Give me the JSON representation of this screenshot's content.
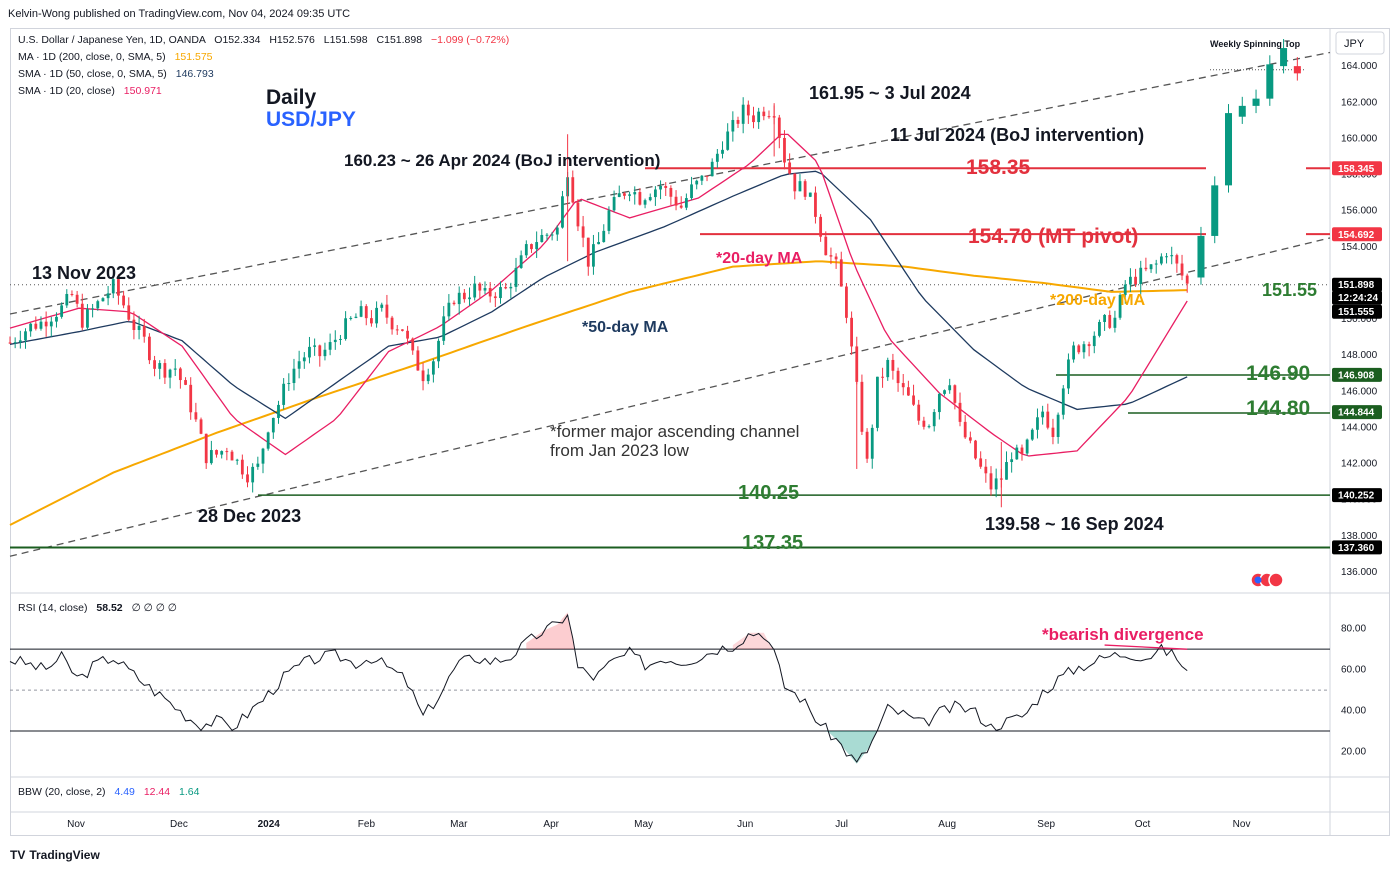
{
  "header": {
    "publisher_line": "Kelvin-Wong published on TradingView.com, Nov 04, 2024 09:35 UTC"
  },
  "legend": {
    "symbol_line": "U.S. Dollar / Japanese Yen, 1D, OANDA",
    "ohlc": {
      "o": "O152.334",
      "h": "H152.576",
      "l": "L151.598",
      "c": "C151.898",
      "chg": "−1.099 (−0.72%)"
    },
    "ma200": {
      "label": "MA · 1D (200, close, 0, SMA, 5)",
      "value": "151.575"
    },
    "sma50": {
      "label": "SMA · 1D (50, close, 0, SMA, 5)",
      "value": "146.793"
    },
    "sma20": {
      "label": "SMA · 1D (20, close)",
      "value": "150.971"
    },
    "rsi": {
      "label": "RSI (14, close)",
      "value": "58.52",
      "extra": "∅ ∅ ∅ ∅"
    },
    "bbw": {
      "label": "BBW (20, close, 2)",
      "v1": "4.49",
      "v2": "12.44",
      "v3": "1.64"
    }
  },
  "footer": {
    "brand": "TradingView",
    "logo": "TV"
  },
  "currency_label": "JPY",
  "colors": {
    "up": "#089981",
    "down": "#f23645",
    "ma200": "#f7a800",
    "sma50": "#1e3a5f",
    "sma20": "#e91e63",
    "resistance": "#e3313e",
    "support": "#1b5e20",
    "text_green": "#2e7d32",
    "channel": "#555555"
  },
  "annotations": {
    "title1": "Daily",
    "title2": "USD/JPY",
    "high_label": "161.95 ~ 3 Jul 2024",
    "boj1": "160.23 ~ 26 Apr 2024 (BoJ intervention)",
    "boj2": "11 Jul 2024 (BoJ intervention)",
    "lvl_15835": "158.35",
    "lvl_15470": "154.70 (MT pivot)",
    "ma20_note": "*20-day MA",
    "ma50_note": "*50-day MA",
    "ma200_note": "*200-day MA",
    "nov13": "13 Nov 2023",
    "dec28": "28 Dec 2023",
    "channel_note1": "*former major ascending channel",
    "channel_note2": "from Jan 2023 low",
    "lvl_14025": "140.25",
    "lvl_13735": "137.35",
    "low_label": "139.58 ~ 16 Sep 2024",
    "lvl_15155": "151.55",
    "lvl_14690": "146.90",
    "lvl_14480": "144.80",
    "spinning_top": "Weekly Spinning Top",
    "bearish_div": "*bearish divergence"
  },
  "price_tags": [
    {
      "value": "158.345",
      "y": 158.345,
      "bg": "#f23645"
    },
    {
      "value": "154.692",
      "y": 154.692,
      "bg": "#f23645"
    },
    {
      "value": "151.898",
      "y": 151.898,
      "bg": "#000000"
    },
    {
      "value": "12:24:24",
      "y": 151.2,
      "bg": "#000000"
    },
    {
      "value": "151.555",
      "y": 150.9,
      "bg": "#000000"
    },
    {
      "value": "146.908",
      "y": 146.908,
      "bg": "#1b5e20"
    },
    {
      "value": "144.844",
      "y": 144.844,
      "bg": "#1b5e20"
    },
    {
      "value": "140.252",
      "y": 140.252,
      "bg": "#000000"
    },
    {
      "value": "137.360",
      "y": 137.36,
      "bg": "#000000"
    }
  ],
  "chart_data": {
    "type": "candlestick",
    "title": "U.S. Dollar / Japanese Yen, 1D, OANDA",
    "price_axis": {
      "min": 135,
      "max": 166,
      "ticks": [
        "136.000",
        "138.000",
        "140.000",
        "142.000",
        "144.000",
        "146.000",
        "148.000",
        "150.000",
        "152.000",
        "154.000",
        "156.000",
        "158.000",
        "160.000",
        "162.000",
        "164.000"
      ]
    },
    "x_ticks": [
      "Nov",
      "Dec",
      "2024",
      "Feb",
      "Mar",
      "Apr",
      "May",
      "Jun",
      "Jul",
      "Aug",
      "Sep",
      "Oct",
      "Nov"
    ],
    "rsi_axis": {
      "min": 10,
      "max": 95,
      "ticks": [
        "20.00",
        "40.00",
        "60.00",
        "80.00"
      ],
      "upper": 70,
      "lower": 30,
      "mid": 50
    },
    "horizontal_levels": [
      158.35,
      154.7,
      151.55,
      146.9,
      144.8,
      140.25,
      137.35
    ],
    "key_points": [
      {
        "label": "13 Nov 2023",
        "price": 151.9
      },
      {
        "label": "28 Dec 2023",
        "price": 140.25
      },
      {
        "label": "26 Apr 2024",
        "price": 160.23
      },
      {
        "label": "3 Jul 2024",
        "price": 161.95
      },
      {
        "label": "16 Sep 2024",
        "price": 139.58
      }
    ],
    "close_path": [
      [
        0,
        148.7
      ],
      [
        6,
        149.2
      ],
      [
        12,
        149.6
      ],
      [
        18,
        149.8
      ],
      [
        24,
        150.2
      ],
      [
        30,
        150.6
      ],
      [
        36,
        151.3
      ],
      [
        42,
        149.9
      ],
      [
        48,
        150.5
      ],
      [
        54,
        151.2
      ],
      [
        60,
        151.8
      ],
      [
        66,
        150.8
      ],
      [
        72,
        149.6
      ],
      [
        78,
        148.8
      ],
      [
        84,
        147.5
      ],
      [
        90,
        147.2
      ],
      [
        96,
        147.3
      ],
      [
        102,
        146.0
      ],
      [
        108,
        144.3
      ],
      [
        114,
        142.4
      ],
      [
        120,
        142.5
      ],
      [
        126,
        142.9
      ],
      [
        132,
        142.1
      ],
      [
        138,
        141.4
      ],
      [
        144,
        141.8
      ],
      [
        150,
        144.1
      ],
      [
        156,
        145.3
      ],
      [
        162,
        146.8
      ],
      [
        168,
        147.7
      ],
      [
        174,
        148.2
      ],
      [
        180,
        148.0
      ],
      [
        186,
        148.5
      ],
      [
        192,
        149.3
      ],
      [
        198,
        149.9
      ],
      [
        204,
        150.3
      ],
      [
        210,
        150.0
      ],
      [
        216,
        150.5
      ],
      [
        222,
        149.8
      ],
      [
        228,
        149.5
      ],
      [
        234,
        147.9
      ],
      [
        240,
        146.9
      ],
      [
        246,
        147.8
      ],
      [
        252,
        149.8
      ],
      [
        258,
        151.2
      ],
      [
        264,
        151.3
      ],
      [
        270,
        151.7
      ],
      [
        276,
        151.3
      ],
      [
        282,
        151.5
      ],
      [
        288,
        151.6
      ],
      [
        294,
        152.6
      ],
      [
        300,
        153.8
      ],
      [
        306,
        154.4
      ],
      [
        312,
        154.7
      ],
      [
        318,
        155.0
      ],
      [
        324,
        158.3
      ],
      [
        330,
        155.5
      ],
      [
        336,
        153.2
      ],
      [
        342,
        154.2
      ],
      [
        348,
        155.9
      ],
      [
        354,
        156.8
      ],
      [
        360,
        157.3
      ],
      [
        366,
        156.7
      ],
      [
        372,
        157.1
      ],
      [
        378,
        157.4
      ],
      [
        384,
        156.8
      ],
      [
        390,
        156.2
      ],
      [
        396,
        157.2
      ],
      [
        402,
        157.7
      ],
      [
        408,
        158.5
      ],
      [
        414,
        159.8
      ],
      [
        420,
        160.6
      ],
      [
        426,
        161.5
      ],
      [
        432,
        161.2
      ],
      [
        438,
        161.6
      ],
      [
        444,
        161.6
      ],
      [
        450,
        158.9
      ],
      [
        456,
        157.4
      ],
      [
        462,
        157.2
      ],
      [
        468,
        155.9
      ],
      [
        474,
        153.9
      ],
      [
        480,
        152.9
      ],
      [
        486,
        150.4
      ],
      [
        492,
        146.1
      ],
      [
        498,
        142.0
      ],
      [
        504,
        146.4
      ],
      [
        510,
        147.5
      ],
      [
        516,
        146.4
      ],
      [
        522,
        145.6
      ],
      [
        528,
        144.4
      ],
      [
        534,
        144.3
      ],
      [
        540,
        146.0
      ],
      [
        546,
        146.7
      ],
      [
        552,
        144.0
      ],
      [
        558,
        142.9
      ],
      [
        564,
        141.7
      ],
      [
        570,
        140.7
      ],
      [
        576,
        141.2
      ],
      [
        582,
        142.6
      ],
      [
        588,
        142.3
      ],
      [
        594,
        143.6
      ],
      [
        600,
        144.9
      ],
      [
        606,
        143.8
      ],
      [
        612,
        146.5
      ],
      [
        618,
        148.3
      ],
      [
        624,
        148.7
      ],
      [
        630,
        149.2
      ],
      [
        636,
        149.8
      ],
      [
        642,
        150.0
      ],
      [
        648,
        151.9
      ],
      [
        654,
        152.3
      ],
      [
        660,
        152.6
      ],
      [
        666,
        153.0
      ],
      [
        672,
        153.8
      ],
      [
        678,
        152.9
      ],
      [
        684,
        151.9
      ]
    ],
    "series": [
      {
        "name": "MA (200)",
        "values": [
          [
            0,
            138.6
          ],
          [
            60,
            141.5
          ],
          [
            120,
            143.7
          ],
          [
            180,
            145.7
          ],
          [
            240,
            147.6
          ],
          [
            300,
            149.6
          ],
          [
            360,
            151.5
          ],
          [
            420,
            152.9
          ],
          [
            470,
            153.2
          ],
          [
            520,
            152.9
          ],
          [
            560,
            152.4
          ],
          [
            600,
            152.0
          ],
          [
            640,
            151.5
          ],
          [
            684,
            151.6
          ]
        ]
      },
      {
        "name": "SMA (50)",
        "values": [
          [
            0,
            148.6
          ],
          [
            40,
            149.3
          ],
          [
            70,
            149.9
          ],
          [
            100,
            148.8
          ],
          [
            130,
            146.3
          ],
          [
            160,
            144.5
          ],
          [
            190,
            146.5
          ],
          [
            220,
            148.5
          ],
          [
            250,
            149.0
          ],
          [
            280,
            150.4
          ],
          [
            310,
            152.3
          ],
          [
            340,
            153.7
          ],
          [
            380,
            155.1
          ],
          [
            420,
            156.8
          ],
          [
            450,
            158.0
          ],
          [
            470,
            158.2
          ],
          [
            500,
            155.5
          ],
          [
            530,
            151.2
          ],
          [
            560,
            148.3
          ],
          [
            590,
            146.2
          ],
          [
            620,
            145.0
          ],
          [
            650,
            145.3
          ],
          [
            684,
            146.8
          ]
        ]
      },
      {
        "name": "SMA (20)",
        "values": [
          [
            0,
            149.5
          ],
          [
            40,
            150.6
          ],
          [
            70,
            150.4
          ],
          [
            100,
            148.5
          ],
          [
            130,
            144.5
          ],
          [
            160,
            142.5
          ],
          [
            190,
            144.5
          ],
          [
            220,
            148.2
          ],
          [
            250,
            149.6
          ],
          [
            280,
            151.6
          ],
          [
            310,
            154.1
          ],
          [
            330,
            156.7
          ],
          [
            360,
            155.6
          ],
          [
            400,
            156.7
          ],
          [
            430,
            158.6
          ],
          [
            450,
            160.4
          ],
          [
            470,
            158.6
          ],
          [
            490,
            153.1
          ],
          [
            510,
            149.0
          ],
          [
            540,
            145.9
          ],
          [
            570,
            143.7
          ],
          [
            590,
            142.4
          ],
          [
            620,
            142.7
          ],
          [
            650,
            145.7
          ],
          [
            684,
            151.0
          ]
        ]
      }
    ],
    "late_candles": [
      {
        "t": 692,
        "o": 152.3,
        "c": 154.6
      },
      {
        "t": 700,
        "o": 154.6,
        "c": 157.4
      },
      {
        "t": 708,
        "o": 157.4,
        "c": 161.4
      },
      {
        "t": 716,
        "o": 161.2,
        "c": 161.8
      },
      {
        "t": 724,
        "o": 161.8,
        "c": 162.2
      },
      {
        "t": 732,
        "o": 162.2,
        "c": 164.1
      },
      {
        "t": 740,
        "o": 164.0,
        "c": 165.0
      },
      {
        "t": 748,
        "o": 164.0,
        "c": 163.6
      }
    ],
    "rsi": [
      [
        0,
        65
      ],
      [
        10,
        63
      ],
      [
        20,
        60
      ],
      [
        30,
        66
      ],
      [
        40,
        55
      ],
      [
        50,
        63
      ],
      [
        60,
        66
      ],
      [
        70,
        59
      ],
      [
        80,
        52
      ],
      [
        90,
        46
      ],
      [
        100,
        39
      ],
      [
        110,
        33
      ],
      [
        120,
        35
      ],
      [
        130,
        32
      ],
      [
        140,
        40
      ],
      [
        150,
        48
      ],
      [
        160,
        57
      ],
      [
        170,
        63
      ],
      [
        180,
        66
      ],
      [
        190,
        67
      ],
      [
        200,
        63
      ],
      [
        210,
        66
      ],
      [
        220,
        61
      ],
      [
        230,
        55
      ],
      [
        240,
        37
      ],
      [
        250,
        48
      ],
      [
        260,
        63
      ],
      [
        270,
        66
      ],
      [
        280,
        64
      ],
      [
        290,
        66
      ],
      [
        300,
        73
      ],
      [
        310,
        79
      ],
      [
        318,
        82
      ],
      [
        324,
        88
      ],
      [
        330,
        61
      ],
      [
        340,
        56
      ],
      [
        350,
        64
      ],
      [
        360,
        68
      ],
      [
        370,
        62
      ],
      [
        380,
        66
      ],
      [
        390,
        64
      ],
      [
        400,
        66
      ],
      [
        410,
        70
      ],
      [
        420,
        72
      ],
      [
        430,
        78
      ],
      [
        438,
        78
      ],
      [
        444,
        68
      ],
      [
        450,
        52
      ],
      [
        460,
        46
      ],
      [
        470,
        34
      ],
      [
        480,
        26
      ],
      [
        486,
        20
      ],
      [
        492,
        14
      ],
      [
        500,
        23
      ],
      [
        510,
        41
      ],
      [
        520,
        38
      ],
      [
        530,
        33
      ],
      [
        540,
        39
      ],
      [
        550,
        42
      ],
      [
        560,
        40
      ],
      [
        570,
        32
      ],
      [
        580,
        35
      ],
      [
        590,
        38
      ],
      [
        600,
        49
      ],
      [
        610,
        56
      ],
      [
        620,
        61
      ],
      [
        630,
        64
      ],
      [
        640,
        67
      ],
      [
        650,
        68
      ],
      [
        660,
        66
      ],
      [
        670,
        70
      ],
      [
        678,
        66
      ],
      [
        684,
        59
      ]
    ]
  }
}
